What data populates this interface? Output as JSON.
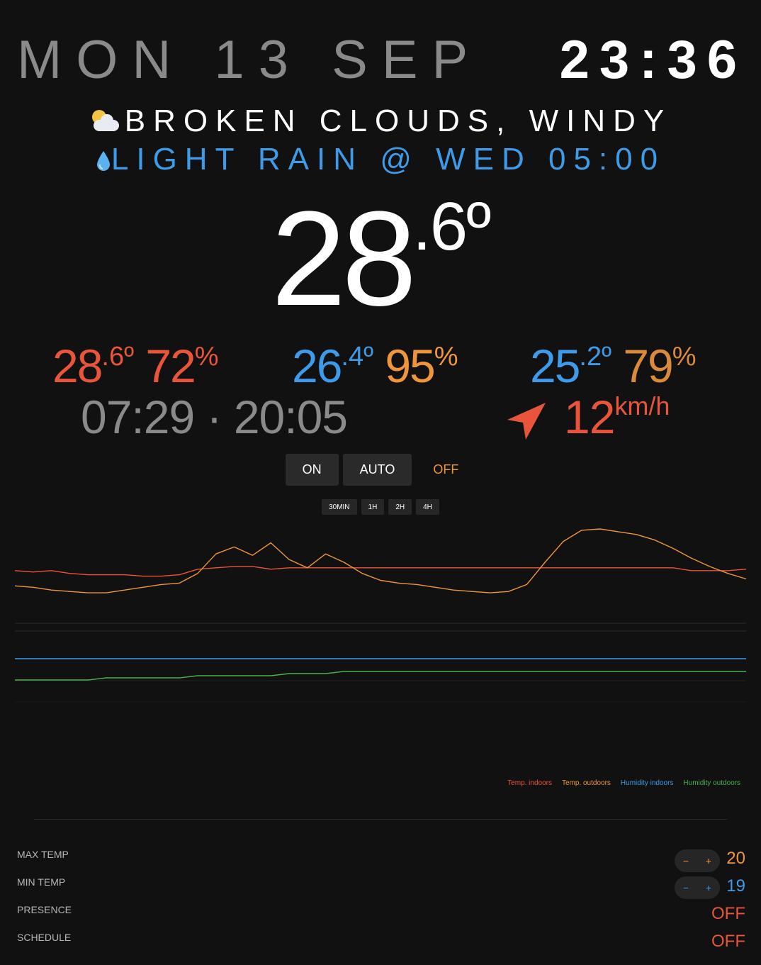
{
  "header": {
    "date": "MON 13 SEP",
    "time": "23:36"
  },
  "forecast": {
    "current_icon": "cloud-sun-icon",
    "current": "BROKEN CLOUDS, WINDY",
    "next_icon": "droplet-icon",
    "next": "LIGHT RAIN @ WED 05:00"
  },
  "main_temp": {
    "whole": "28",
    "decimal": ".6",
    "unit": "º"
  },
  "readings": [
    {
      "temp_whole": "28",
      "temp_decimal": ".6º",
      "humidity": "72",
      "unit": "%",
      "temp_color": "#e8553a",
      "humidity_color": "#e8553a"
    },
    {
      "temp_whole": "26",
      "temp_decimal": ".4º",
      "humidity": "95",
      "unit": "%",
      "temp_color": "#3d9be9",
      "humidity_color": "#f0963a"
    },
    {
      "temp_whole": "25",
      "temp_decimal": ".2º",
      "humidity": "79",
      "unit": "%",
      "temp_color": "#3d9be9",
      "humidity_color": "#d98a3a"
    }
  ],
  "sun_times": {
    "sunrise": "07:29",
    "separator": "·",
    "sunset": "20:05"
  },
  "wind": {
    "icon": "navigation-arrow-icon",
    "speed": "12",
    "unit": "km/h"
  },
  "modes": {
    "on": "ON",
    "auto": "AUTO",
    "off": "OFF"
  },
  "ranges": [
    "30MIN",
    "1H",
    "2H",
    "4H"
  ],
  "chart_data": {
    "type": "line",
    "series": [
      {
        "name": "Temp. indoors",
        "color": "#e8553a",
        "values": [
          26.4,
          26.3,
          26.4,
          26.2,
          26.1,
          26.1,
          26.1,
          26.0,
          26.0,
          26.1,
          26.5,
          26.6,
          26.7,
          26.7,
          26.5,
          26.6,
          26.6,
          26.6,
          26.6,
          26.6,
          26.6,
          26.6,
          26.6,
          26.6,
          26.6,
          26.6,
          26.6,
          26.6,
          26.6,
          26.6,
          26.6,
          26.6,
          26.6,
          26.6,
          26.6,
          26.6,
          26.6,
          26.4,
          26.4,
          26.4,
          26.5
        ]
      },
      {
        "name": "Temp. outdoors",
        "color": "#f0963a",
        "values": [
          25.3,
          25.2,
          25.0,
          24.9,
          24.8,
          24.8,
          25.0,
          25.2,
          25.4,
          25.5,
          26.2,
          27.6,
          28.1,
          27.5,
          28.4,
          27.2,
          26.6,
          27.6,
          27.0,
          26.2,
          25.7,
          25.5,
          25.4,
          25.2,
          25.0,
          24.9,
          24.8,
          24.9,
          25.4,
          27.0,
          28.5,
          29.3,
          29.4,
          29.2,
          29.0,
          28.6,
          28.0,
          27.3,
          26.7,
          26.2,
          25.8
        ]
      },
      {
        "name": "Humidity indoors",
        "color": "#3d9be9",
        "values": [
          72,
          72,
          72,
          72,
          72,
          72,
          72,
          72,
          72,
          72,
          72,
          72,
          72,
          72,
          72,
          72,
          72,
          72,
          72,
          72,
          72,
          72,
          72,
          72,
          72,
          72,
          72,
          72,
          72,
          72,
          72,
          72,
          72,
          72,
          72,
          72,
          72,
          72,
          72,
          72,
          72
        ]
      },
      {
        "name": "Humidity outdoors",
        "color": "#4caf50",
        "values": [
          62,
          62,
          62,
          62,
          62,
          63,
          63,
          63,
          63,
          63,
          64,
          64,
          64,
          64,
          64,
          65,
          65,
          65,
          66,
          66,
          66,
          66,
          66,
          66,
          66,
          66,
          66,
          66,
          66,
          66,
          66,
          66,
          66,
          66,
          66,
          66,
          66,
          66,
          66,
          66,
          66
        ]
      }
    ]
  },
  "settings": {
    "max_temp": {
      "label": "MAX TEMP",
      "value": "20",
      "minus": "−",
      "plus": "+"
    },
    "min_temp": {
      "label": "MIN TEMP",
      "value": "19",
      "minus": "−",
      "plus": "+"
    },
    "presence": {
      "label": "PRESENCE",
      "value": "OFF"
    },
    "schedule": {
      "label": "SCHEDULE",
      "value": "OFF"
    }
  },
  "colors": {
    "background": "#111111",
    "red": "#e8553a",
    "orange": "#f0963a",
    "blue": "#3d9be9",
    "green": "#4caf50",
    "grey": "#8a8a8a"
  }
}
